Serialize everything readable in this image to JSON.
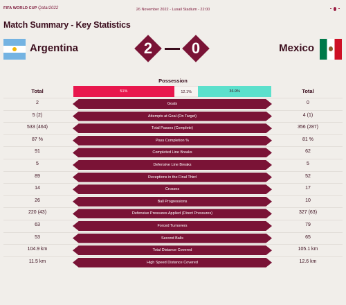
{
  "header": {
    "brand": "FIFA WORLD CUP",
    "brand_suffix": "Qatar2022",
    "match_info": "26 November 2022 - Lusail Stadium - 22:00"
  },
  "title": "Match Summary - Key Statistics",
  "home": {
    "name": "Argentina",
    "score": "2",
    "total_label": "Total"
  },
  "away": {
    "name": "Mexico",
    "score": "0",
    "total_label": "Total"
  },
  "possession": {
    "label": "Possession",
    "home_label": "51%",
    "contest_label": "12.1%",
    "away_label": "36.9%",
    "home_pct": 51,
    "contest_pct": 12.1,
    "away_pct": 36.9
  },
  "stats": [
    {
      "label": "Goals",
      "home": "2",
      "away": "0"
    },
    {
      "label": "Attempts at Goal (On Target)",
      "home": "5 (2)",
      "away": "4 (1)"
    },
    {
      "label": "Total Passes (Complete)",
      "home": "533 (464)",
      "away": "356 (287)"
    },
    {
      "label": "Pass Completion %",
      "home": "87 %",
      "away": "81 %"
    },
    {
      "label": "Completed Line Breaks",
      "home": "91",
      "away": "62"
    },
    {
      "label": "Defensive Line Breaks",
      "home": "5",
      "away": "5"
    },
    {
      "label": "Receptions in the Final Third",
      "home": "89",
      "away": "52"
    },
    {
      "label": "Crosses",
      "home": "14",
      "away": "17"
    },
    {
      "label": "Ball Progressions",
      "home": "26",
      "away": "10"
    },
    {
      "label": "Defensive Pressures Applied (Direct Pressures)",
      "home": "220 (43)",
      "away": "327 (63)"
    },
    {
      "label": "Forced Turnovers",
      "home": "63",
      "away": "79"
    },
    {
      "label": "Second Balls",
      "home": "53",
      "away": "65"
    },
    {
      "label": "Total Distance Covered",
      "home": "104.9 km",
      "away": "105.1 km"
    },
    {
      "label": "High Speed Distance Covered",
      "home": "11.5 km",
      "away": "12.6 km"
    }
  ]
}
